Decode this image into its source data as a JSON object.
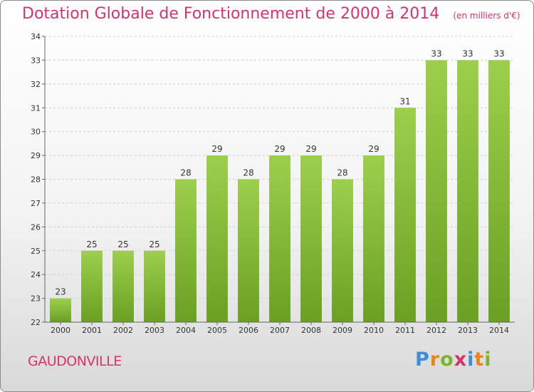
{
  "colors": {
    "title": "#d6336c",
    "bar_top": "#9ccf4c",
    "bar_bottom": "#6aa023",
    "grid": "#cfcfcf",
    "axis": "#666666"
  },
  "commune": "GAUDONVILLE",
  "logo": {
    "text": "Proxiti",
    "letters": [
      "P",
      "r",
      "o",
      "x",
      "i",
      "t",
      "i"
    ]
  },
  "chart_data": {
    "type": "bar",
    "title": "Dotation Globale de Fonctionnement de 2000 à 2014",
    "subtitle": "(en milliers d'€)",
    "categories": [
      "2000",
      "2001",
      "2002",
      "2003",
      "2004",
      "2005",
      "2006",
      "2007",
      "2008",
      "2009",
      "2010",
      "2011",
      "2012",
      "2013",
      "2014"
    ],
    "values": [
      23,
      25,
      25,
      25,
      28,
      29,
      28,
      29,
      29,
      28,
      29,
      31,
      33,
      33,
      33
    ],
    "ylim": [
      22,
      34
    ],
    "yticks": [
      22,
      23,
      24,
      25,
      26,
      27,
      28,
      29,
      30,
      31,
      32,
      33,
      34
    ],
    "grid": true,
    "xlabel": "",
    "ylabel": ""
  }
}
